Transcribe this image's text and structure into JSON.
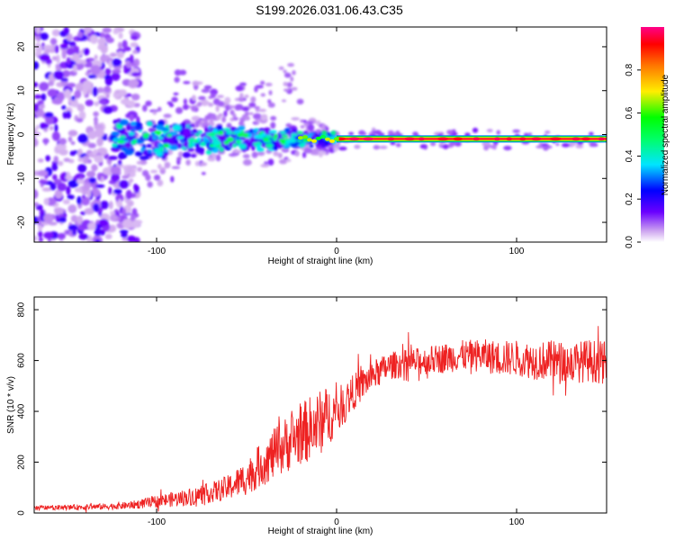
{
  "title": "S199.2026.031.06.43.C35",
  "colorbar": {
    "label": "Normalized spectral amplitude",
    "ticks": [
      "0.0",
      "0.2",
      "0.4",
      "0.6",
      "0.8"
    ],
    "tick_values": [
      0.0,
      0.2,
      0.4,
      0.6,
      0.8
    ],
    "range": [
      0,
      1
    ]
  },
  "chart_data": [
    {
      "type": "heatmap",
      "name": "spectrogram",
      "xlabel": "Height of straight line (km)",
      "ylabel": "Frequency (Hz)",
      "xlim": [
        -168,
        150
      ],
      "ylim": [
        -24.5,
        24.5
      ],
      "xticks": [
        -100,
        0,
        100
      ],
      "xtick_labels": [
        "-100",
        "0",
        "100"
      ],
      "yticks": [
        -20,
        -10,
        0,
        10,
        20
      ],
      "ytick_labels": [
        "-20",
        "-10",
        "0",
        "10",
        "20"
      ],
      "signal_band": {
        "frequency_hz": -1,
        "description": "narrow high-amplitude line at about -1 Hz from ~0 km to 150 km; broad scattered noise below -110 km",
        "segments": [
          {
            "x": [
              -125,
              -100
            ],
            "amplitude": 0.35
          },
          {
            "x": [
              -100,
              -20
            ],
            "amplitude": 0.4
          },
          {
            "x": [
              -20,
              0
            ],
            "amplitude": 0.6
          },
          {
            "x": [
              0,
              150
            ],
            "amplitude": 0.95
          }
        ]
      }
    },
    {
      "type": "line",
      "name": "snr",
      "xlabel": "Height of straight line (km)",
      "ylabel": "SNR (10 * v/v)",
      "xlim": [
        -168,
        150
      ],
      "ylim": [
        0,
        850
      ],
      "xticks": [
        -100,
        0,
        100
      ],
      "xtick_labels": [
        "-100",
        "0",
        "100"
      ],
      "yticks": [
        0,
        200,
        400,
        600,
        800
      ],
      "ytick_labels": [
        "0",
        "200",
        "400",
        "600",
        "800"
      ],
      "color": "#ee2222",
      "series": [
        {
          "name": "SNR",
          "x": [
            -168,
            -150,
            -130,
            -115,
            -100,
            -90,
            -80,
            -70,
            -60,
            -50,
            -40,
            -30,
            -20,
            -15,
            -10,
            -5,
            0,
            10,
            20,
            30,
            40,
            50,
            60,
            70,
            80,
            90,
            100,
            110,
            120,
            130,
            140,
            150
          ],
          "y": [
            20,
            22,
            25,
            30,
            45,
            55,
            65,
            80,
            100,
            140,
            200,
            260,
            310,
            330,
            350,
            380,
            400,
            480,
            540,
            580,
            590,
            600,
            610,
            620,
            620,
            610,
            610,
            600,
            600,
            590,
            600,
            590
          ],
          "noise_amplitude": [
            10,
            10,
            12,
            15,
            25,
            30,
            35,
            40,
            50,
            70,
            90,
            110,
            120,
            130,
            130,
            120,
            90,
            70,
            60,
            55,
            55,
            55,
            60,
            60,
            65,
            70,
            70,
            75,
            80,
            80,
            85,
            85
          ]
        }
      ]
    }
  ]
}
